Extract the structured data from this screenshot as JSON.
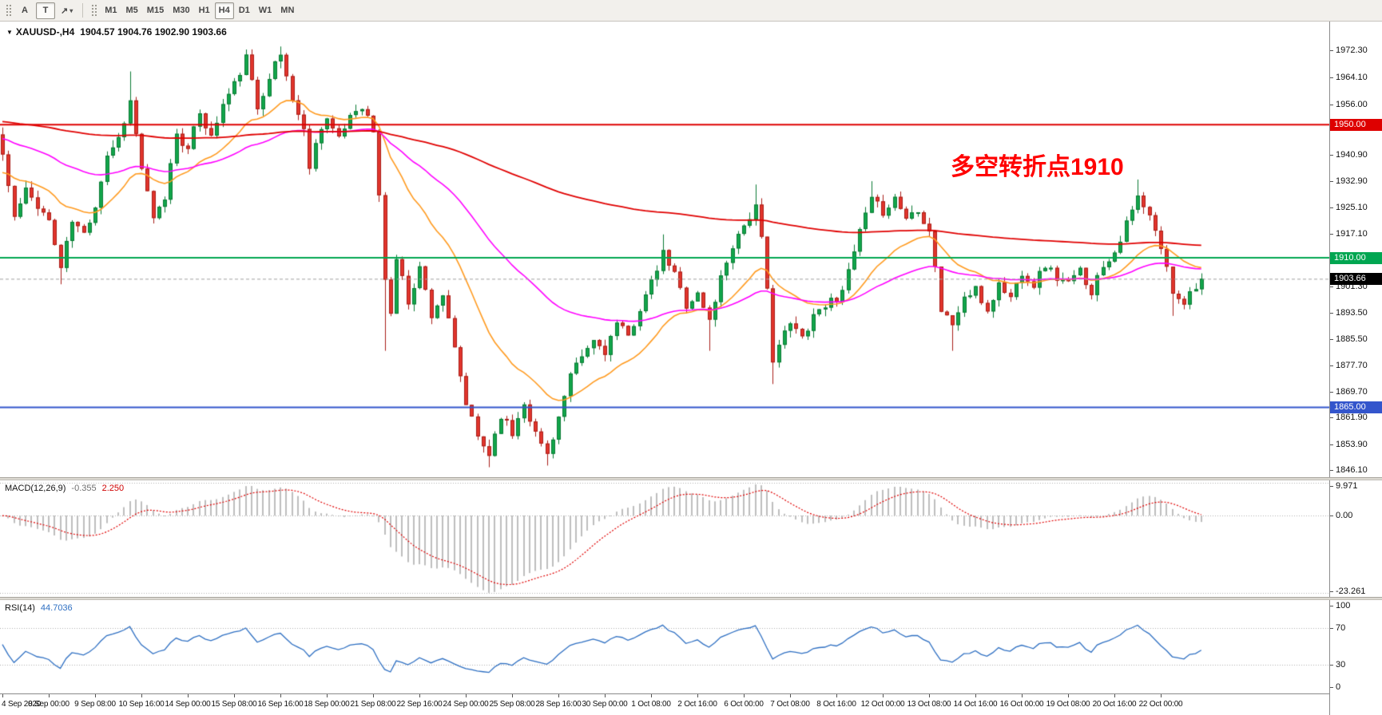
{
  "toolbar": {
    "text_tool": "A",
    "label_tool": "T",
    "shape_tool_glyph": "↗",
    "dropdown_icon": "▾",
    "timeframes": [
      "M1",
      "M5",
      "M15",
      "M30",
      "H1",
      "H4",
      "D1",
      "W1",
      "MN"
    ],
    "active_timeframe": "H4"
  },
  "chart": {
    "symbol_tf": "XAUUSD-,H4",
    "ohlc": "1904.57 1904.76 1902.90 1903.66",
    "dropdown_marker": "▼",
    "annotation": {
      "text": "多空转折点1910",
      "color": "#FF0000"
    },
    "hlines": [
      {
        "price": 1950.0,
        "label": "1950.00",
        "color": "#DE0000"
      },
      {
        "price": 1910.0,
        "label": "1910.00",
        "color": "#00A651"
      },
      {
        "price": 1865.0,
        "label": "1865.00",
        "color": "#3355CC"
      }
    ],
    "current_price": {
      "value": 1903.66,
      "label": "1903.66",
      "box_color": "#000000",
      "line_color": "#A0A0A0"
    },
    "price_axis_ticks": [
      "1972.30",
      "1964.10",
      "1956.00",
      "1940.90",
      "1932.90",
      "1925.10",
      "1917.10",
      "1901.30",
      "1893.50",
      "1885.50",
      "1877.70",
      "1869.70",
      "1861.90",
      "1853.90",
      "1846.10"
    ]
  },
  "chart_data": {
    "type": "candlestick",
    "symbol": "XAUUSD",
    "timeframe": "H4",
    "bars": 208,
    "price_range": [
      1844,
      1981
    ],
    "key_levels": {
      "resistance": 1950.0,
      "pivot": 1910.0,
      "support": 1865.0,
      "last": 1903.66
    },
    "close_waypoints": [
      [
        0,
        1941
      ],
      [
        2,
        1922
      ],
      [
        4,
        1930
      ],
      [
        6,
        1926
      ],
      [
        8,
        1921
      ],
      [
        10,
        1907
      ],
      [
        12,
        1921
      ],
      [
        14,
        1917
      ],
      [
        16,
        1926
      ],
      [
        18,
        1941
      ],
      [
        20,
        1946
      ],
      [
        22,
        1957
      ],
      [
        24,
        1937
      ],
      [
        26,
        1921
      ],
      [
        28,
        1928
      ],
      [
        30,
        1948
      ],
      [
        32,
        1942
      ],
      [
        34,
        1954
      ],
      [
        36,
        1946
      ],
      [
        38,
        1956
      ],
      [
        40,
        1962
      ],
      [
        42,
        1970
      ],
      [
        44,
        1955
      ],
      [
        46,
        1965
      ],
      [
        48,
        1971
      ],
      [
        50,
        1958
      ],
      [
        52,
        1948
      ],
      [
        53,
        1938
      ],
      [
        55,
        1950
      ],
      [
        56,
        1952
      ],
      [
        58,
        1945
      ],
      [
        60,
        1953
      ],
      [
        62,
        1956
      ],
      [
        64,
        1948
      ],
      [
        65,
        1928
      ],
      [
        66,
        1904
      ],
      [
        67,
        1893
      ],
      [
        68,
        1910
      ],
      [
        70,
        1897
      ],
      [
        72,
        1907
      ],
      [
        74,
        1893
      ],
      [
        76,
        1899
      ],
      [
        78,
        1882
      ],
      [
        80,
        1866
      ],
      [
        82,
        1856
      ],
      [
        84,
        1851
      ],
      [
        86,
        1863
      ],
      [
        88,
        1857
      ],
      [
        90,
        1867
      ],
      [
        92,
        1857
      ],
      [
        94,
        1851
      ],
      [
        96,
        1862
      ],
      [
        98,
        1874
      ],
      [
        100,
        1880
      ],
      [
        102,
        1885
      ],
      [
        104,
        1882
      ],
      [
        106,
        1890
      ],
      [
        108,
        1886
      ],
      [
        110,
        1895
      ],
      [
        112,
        1902
      ],
      [
        114,
        1911
      ],
      [
        116,
        1905
      ],
      [
        118,
        1896
      ],
      [
        120,
        1899
      ],
      [
        122,
        1891
      ],
      [
        124,
        1904
      ],
      [
        126,
        1914
      ],
      [
        128,
        1920
      ],
      [
        130,
        1925
      ],
      [
        131,
        1915
      ],
      [
        132,
        1900
      ],
      [
        133,
        1880
      ],
      [
        134,
        1884
      ],
      [
        136,
        1890
      ],
      [
        138,
        1886
      ],
      [
        140,
        1893
      ],
      [
        142,
        1896
      ],
      [
        144,
        1898
      ],
      [
        146,
        1905
      ],
      [
        148,
        1918
      ],
      [
        150,
        1927
      ],
      [
        152,
        1924
      ],
      [
        154,
        1928
      ],
      [
        156,
        1922
      ],
      [
        158,
        1925
      ],
      [
        160,
        1918
      ],
      [
        161,
        1908
      ],
      [
        162,
        1894
      ],
      [
        164,
        1890
      ],
      [
        166,
        1898
      ],
      [
        168,
        1900
      ],
      [
        170,
        1894
      ],
      [
        172,
        1902
      ],
      [
        174,
        1898
      ],
      [
        176,
        1906
      ],
      [
        178,
        1902
      ],
      [
        180,
        1908
      ],
      [
        182,
        1904
      ],
      [
        184,
        1902
      ],
      [
        186,
        1906
      ],
      [
        188,
        1900
      ],
      [
        190,
        1908
      ],
      [
        192,
        1912
      ],
      [
        194,
        1920
      ],
      [
        196,
        1928
      ],
      [
        198,
        1922
      ],
      [
        200,
        1913
      ],
      [
        202,
        1900
      ],
      [
        204,
        1897
      ],
      [
        206,
        1902
      ],
      [
        207,
        1903.66
      ]
    ],
    "wick_overrides": {
      "highs": [
        [
          22,
          1966
        ],
        [
          42,
          1972.5
        ],
        [
          48,
          1973.5
        ],
        [
          114,
          1917
        ],
        [
          130,
          1932
        ],
        [
          150,
          1933
        ],
        [
          196,
          1933.5
        ]
      ],
      "lows": [
        [
          10,
          1902
        ],
        [
          66,
          1882
        ],
        [
          84,
          1847
        ],
        [
          94,
          1847.5
        ],
        [
          122,
          1882
        ],
        [
          133,
          1872
        ],
        [
          164,
          1882
        ],
        [
          202,
          1892.5
        ]
      ]
    },
    "seed": 11,
    "candle_style": {
      "bull": "#12A64B",
      "bull_border": "#0A7A33",
      "bear": "#E2352C",
      "bear_border": "#A91E18",
      "noise": 1.5,
      "wick": 2.2
    },
    "moving_averages": [
      {
        "name": "fast",
        "period": 20,
        "seed": 1935,
        "color": "#FF9A1F",
        "width": 1.6
      },
      {
        "name": "medium",
        "period": 55,
        "seed": 1946,
        "color": "#FF00FF",
        "width": 1.6
      },
      {
        "name": "slow",
        "period": 220,
        "seed": 1951,
        "color": "#E00000",
        "width": 1.8
      }
    ],
    "indicators": {
      "macd": {
        "label": "MACD(12,26,9)",
        "main_value": "-0.355",
        "signal_value": "2.250",
        "fast": 12,
        "slow": 26,
        "signal": 9,
        "axis_ticks": [
          {
            "value": 9.971,
            "text": "9.971"
          },
          {
            "value": 0,
            "text": "0.00"
          },
          {
            "value": -23.261,
            "text": "-23.261"
          }
        ],
        "histogram_color": "#BEBEBE",
        "signal_color": "#E00000",
        "range": [
          -24.5,
          10.6
        ]
      },
      "rsi": {
        "label": "RSI(14)",
        "value": "44.7036",
        "period": 14,
        "levels": [
          70,
          30
        ],
        "axis_ticks": [
          {
            "value": 100,
            "text": "100"
          },
          {
            "value": 70,
            "text": "70"
          },
          {
            "value": 30,
            "text": "30"
          },
          {
            "value": 0,
            "text": "0"
          }
        ],
        "line_color": "#2E6FC2"
      }
    },
    "time_axis": [
      "4 Sep 2020",
      "8 Sep 00:00",
      "9 Sep 08:00",
      "10 Sep 16:00",
      "14 Sep 00:00",
      "15 Sep 08:00",
      "16 Sep 16:00",
      "18 Sep 00:00",
      "21 Sep 08:00",
      "22 Sep 16:00",
      "24 Sep 00:00",
      "25 Sep 08:00",
      "28 Sep 16:00",
      "30 Sep 00:00",
      "1 Oct 08:00",
      "2 Oct 16:00",
      "6 Oct 00:00",
      "7 Oct 08:00",
      "8 Oct 16:00",
      "12 Oct 00:00",
      "13 Oct 08:00",
      "14 Oct 16:00",
      "16 Oct 00:00",
      "19 Oct 08:00",
      "20 Oct 16:00",
      "22 Oct 00:00"
    ]
  }
}
